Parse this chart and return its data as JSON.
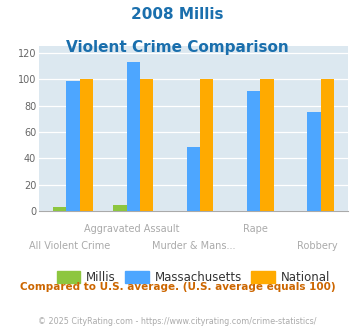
{
  "title_line1": "2008 Millis",
  "title_line2": "Violent Crime Comparison",
  "categories": [
    "All Violent Crime",
    "Aggravated Assault",
    "Murder & Mans...",
    "Rape",
    "Robbery"
  ],
  "top_labels": [
    "",
    "Aggravated Assault",
    "",
    "Rape",
    ""
  ],
  "bottom_labels": [
    "All Violent Crime",
    "",
    "Murder & Mans...",
    "",
    "Robbery"
  ],
  "millis": [
    3,
    5,
    0,
    0,
    0
  ],
  "massachusetts": [
    99,
    113,
    49,
    91,
    75
  ],
  "national": [
    100,
    100,
    100,
    100,
    100
  ],
  "millis_color": "#8dc63f",
  "massachusetts_color": "#4da6ff",
  "national_color": "#ffaa00",
  "title_color": "#1a6fad",
  "bg_color": "#dce8f0",
  "ylabel_ticks": [
    0,
    20,
    40,
    60,
    80,
    100,
    120
  ],
  "ylim": [
    0,
    125
  ],
  "footnote": "Compared to U.S. average. (U.S. average equals 100)",
  "copyright": "© 2025 CityRating.com - https://www.cityrating.com/crime-statistics/",
  "footnote_color": "#cc6600",
  "copyright_color": "#aaaaaa",
  "legend_labels": [
    "Millis",
    "Massachusetts",
    "National"
  ]
}
